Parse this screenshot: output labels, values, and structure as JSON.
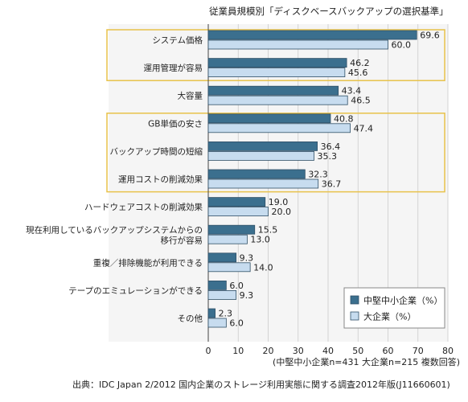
{
  "chart_data": {
    "type": "bar",
    "orientation": "horizontal",
    "title": "従業員規模別「ディスクベースバックアップの選択基準」",
    "categories": [
      [
        "システム価格"
      ],
      [
        "運用管理が容易"
      ],
      [
        "大容量"
      ],
      [
        "GB単価の安さ"
      ],
      [
        "バックアップ時間の短縮"
      ],
      [
        "運用コストの削減効果"
      ],
      [
        "ハードウェアコストの削減効果"
      ],
      [
        "現在利用しているバックアップシステムからの",
        "移行が容易"
      ],
      [
        "重複／排除機能が利用できる"
      ],
      [
        "テープのエミュレーションができる"
      ],
      [
        "その他"
      ]
    ],
    "series": [
      {
        "name": "中堅中小企業（%）",
        "values": [
          69.6,
          46.2,
          43.4,
          40.8,
          36.4,
          32.3,
          19.0,
          15.5,
          9.3,
          6.0,
          2.3
        ]
      },
      {
        "name": "大企業（%）",
        "values": [
          60.0,
          45.6,
          46.5,
          47.4,
          35.3,
          36.7,
          20.0,
          13.0,
          14.0,
          9.3,
          6.0
        ]
      }
    ],
    "value_labels": [
      [
        "69.6",
        "46.2",
        "43.4",
        "40.8",
        "36.4",
        "32.3",
        "19.0",
        "15.5",
        "9.3",
        "6.0",
        "2.3"
      ],
      [
        "60.0",
        "45.6",
        "46.5",
        "47.4",
        "35.3",
        "36.7",
        "20.0",
        "13.0",
        "14.0",
        "9.3",
        "6.0"
      ]
    ],
    "xlim": [
      0,
      80
    ],
    "xticks": [
      "0",
      "10",
      "20",
      "30",
      "40",
      "50",
      "60",
      "70",
      "80"
    ],
    "highlight_groups": [
      [
        0,
        1
      ],
      [
        3,
        4,
        5
      ]
    ],
    "legend_position": "bottom-right",
    "colors": {
      "series1": "#3b6f8e",
      "series2": "#c7dcef",
      "bar_border": "#2f4f66",
      "plot_bg": "#f5f5f5",
      "highlight_border": "#e8c24a",
      "grid": "#cccccc"
    }
  },
  "note": "(中堅中小企業n=431 大企業n=215 複数回答)",
  "source": "出典：IDC Japan 2/2012 国内企業のストレージ利用実態に関する調査2012年版(J11660601)"
}
